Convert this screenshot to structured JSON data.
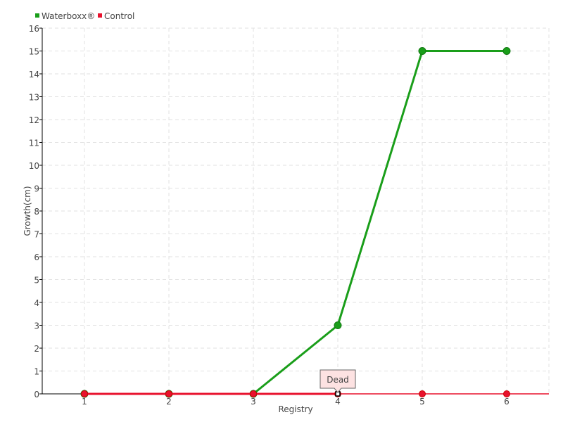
{
  "chart_data": {
    "type": "line",
    "title": "",
    "xlabel": "Registry",
    "ylabel": "Growth(cm)",
    "categories": [
      "1",
      "2",
      "3",
      "4",
      "5",
      "6"
    ],
    "ylim": [
      0,
      16
    ],
    "yticks": [
      0,
      1,
      2,
      3,
      4,
      5,
      6,
      7,
      8,
      9,
      10,
      11,
      12,
      13,
      14,
      15,
      16
    ],
    "grid": true,
    "legend": "top-left",
    "series": [
      {
        "name": "Waterboxx®",
        "color": "#1a9e1a",
        "values": [
          0,
          0,
          0,
          3,
          15,
          15
        ]
      },
      {
        "name": "Control",
        "color": "#e8112d",
        "values": [
          0,
          0,
          0,
          0,
          0,
          0
        ]
      }
    ],
    "annotations": [
      {
        "series": "Control",
        "category": "4",
        "text": "Dead"
      }
    ]
  }
}
